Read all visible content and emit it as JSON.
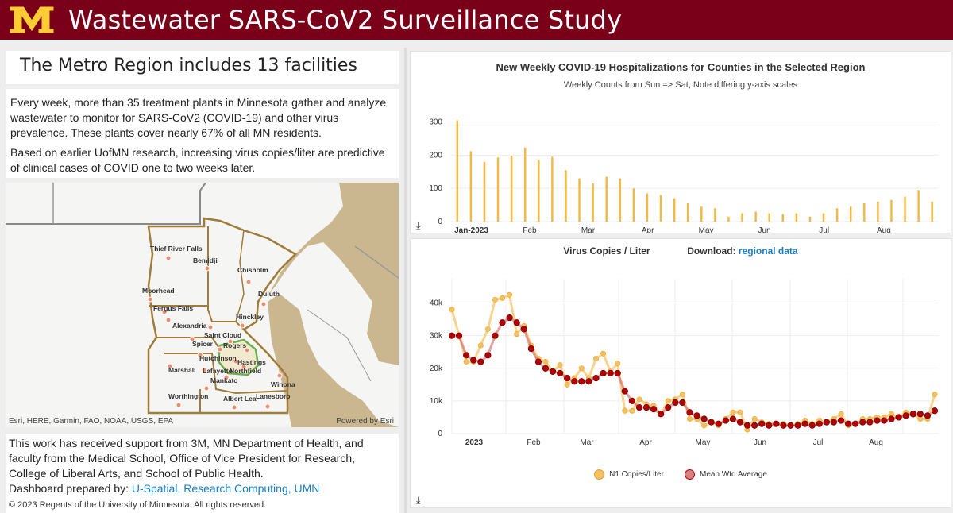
{
  "header": {
    "title": "Wastewater SARS-CoV2 Surveillance Study",
    "logo_icon": "university-m-logo"
  },
  "region_title": "The Metro Region includes 13 facilities",
  "intro": {
    "p1": "Every week, more than 35 treatment plants in Minnesota gather and analyze wastewater to monitor for SARS-CoV2 (COVID-19) and other virus prevalence. These plants cover nearly 67% of all MN residents.",
    "p2": "Based on earlier UofMN research, increasing virus copies/liter are predictive of clinical cases of COVID one to two weeks later."
  },
  "map": {
    "credit": "Esri, HERE, Garmin, FAO, NOAA, USGS, EPA",
    "powered": "Powered by Esri",
    "cities": [
      {
        "name": "Thief River Falls"
      },
      {
        "name": "Bemidji"
      },
      {
        "name": "Chisholm"
      },
      {
        "name": "Moorhead"
      },
      {
        "name": "Duluth"
      },
      {
        "name": "Fergus Falls"
      },
      {
        "name": "Alexandria"
      },
      {
        "name": "Hinckley"
      },
      {
        "name": "Saint Cloud"
      },
      {
        "name": "Spicer"
      },
      {
        "name": "Rogers"
      },
      {
        "name": "Hutchinson"
      },
      {
        "name": "Hastings"
      },
      {
        "name": "Marshall"
      },
      {
        "name": "Lafayette"
      },
      {
        "name": "Northfield"
      },
      {
        "name": "Mankato"
      },
      {
        "name": "Winona"
      },
      {
        "name": "Worthington"
      },
      {
        "name": "Albert Lea"
      },
      {
        "name": "Lanesboro"
      }
    ]
  },
  "footer": {
    "support": "This work has received support from 3M, MN Department of Health, and faculty from the Medical School, Office of Vice President for Research, College of Liberal Arts, and School of Public Health.",
    "prepared_label": "Dashboard prepared by: ",
    "prepared_link": "U-Spatial, Research Computing, UMN",
    "copyright": "© 2023 Regents of the University of Minnesota. All rights reserved."
  },
  "chart_data": [
    {
      "type": "bar",
      "title": "New Weekly COVID-19 Hospitalizations for Counties in the Selected Region",
      "subtitle": "Weekly Counts from Sun => Sat,  Note differing y-axis scales",
      "x_tick_labels": [
        "Jan-2023",
        "Feb",
        "Mar",
        "Apr",
        "May",
        "Jun",
        "Jul",
        "Aug"
      ],
      "y_ticks": [
        0,
        100,
        200,
        300
      ],
      "ylim": [
        0,
        330
      ],
      "values": [
        305,
        212,
        180,
        193,
        198,
        222,
        185,
        195,
        155,
        130,
        115,
        135,
        130,
        100,
        85,
        80,
        70,
        55,
        45,
        40,
        15,
        25,
        30,
        25,
        22,
        25,
        15,
        25,
        40,
        45,
        55,
        60,
        65,
        75,
        95,
        60
      ],
      "color": "#f5b942",
      "download_icon": "download-icon"
    },
    {
      "type": "line",
      "title": "Virus Copies / Liter",
      "download_label": "Download:",
      "download_link": "regional data",
      "x_tick_labels": [
        "2023",
        "Feb",
        "Mar",
        "Apr",
        "May",
        "Jun",
        "Jul",
        "Aug"
      ],
      "y_ticks": [
        "0",
        "10k",
        "20k",
        "30k",
        "40k"
      ],
      "ylim": [
        0,
        45000
      ],
      "series": [
        {
          "name": "N1 Copies/Liter",
          "color": "#f5c060",
          "values": [
            38000,
            30000,
            22000,
            22000,
            27000,
            32000,
            41000,
            41500,
            42500,
            30500,
            33000,
            27000,
            23000,
            22000,
            19000,
            21000,
            15000,
            17000,
            20000,
            17000,
            23000,
            24500,
            19000,
            21500,
            7000,
            7000,
            10500,
            9000,
            8500,
            6000,
            10000,
            10500,
            12000,
            4500,
            4500,
            2500,
            3500,
            2500,
            4500,
            6500,
            6500,
            1200,
            4500,
            3500,
            3000,
            3000,
            3000,
            2500,
            3000,
            4000,
            3000,
            4000,
            3500,
            4500,
            6000,
            2500,
            3000,
            4500,
            4500,
            5000,
            5000,
            6000,
            5000,
            6500,
            6000,
            4500,
            4500,
            12000
          ]
        },
        {
          "name": "Mean Wtd Average",
          "color": "#b00000",
          "values": [
            30000,
            30000,
            24000,
            22500,
            22000,
            24000,
            30000,
            34000,
            35500,
            34000,
            32000,
            26000,
            22000,
            20000,
            19000,
            18500,
            17000,
            16000,
            16000,
            16000,
            17000,
            18500,
            18500,
            18500,
            13000,
            10000,
            8000,
            8000,
            7500,
            6000,
            8000,
            9500,
            9500,
            6500,
            5500,
            4500,
            3500,
            3000,
            4000,
            4500,
            3500,
            2500,
            2500,
            3000,
            2500,
            3000,
            2500,
            2500,
            2500,
            3000,
            2500,
            3000,
            3500,
            3500,
            4000,
            3000,
            3000,
            3500,
            3500,
            4000,
            4000,
            4500,
            5000,
            5500,
            6000,
            6000,
            5500,
            7000
          ]
        }
      ]
    }
  ]
}
